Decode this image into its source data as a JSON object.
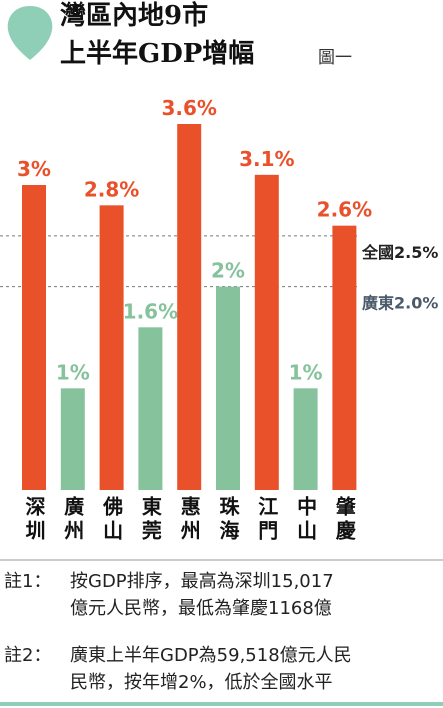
{
  "chart_data": {
    "type": "bar",
    "title": "灣區內地9市",
    "subtitle": "上半年GDP增幅",
    "figure_label": "圖一",
    "categories": [
      "深圳",
      "廣州",
      "佛山",
      "東莞",
      "惠州",
      "珠海",
      "江門",
      "中山",
      "肇慶"
    ],
    "values": [
      3,
      1,
      2.8,
      1.6,
      3.6,
      2,
      3.1,
      1,
      2.6
    ],
    "value_labels": [
      "3%",
      "1%",
      "2.8%",
      "1.6%",
      "3.6%",
      "2%",
      "3.1%",
      "1%",
      "2.6%"
    ],
    "colors": [
      "#e9512b",
      "#86c29b",
      "#e9512b",
      "#86c29b",
      "#e9512b",
      "#86c29b",
      "#e9512b",
      "#86c29b",
      "#e9512b"
    ],
    "reference_lines": [
      {
        "label": "全國2.5%",
        "value": 2.5,
        "color": "#222222"
      },
      {
        "label": "廣東2.0%",
        "value": 2.0,
        "color": "#4a5a6a"
      }
    ]
  },
  "notes": [
    {
      "label": "註1：",
      "lines": [
        "按GDP排序，最高為深圳15,017",
        "億元人民幣，最低為肇慶1168億"
      ]
    },
    {
      "label": "註2：",
      "lines": [
        "廣東上半年GDP為59,518億元人民",
        "民幣，按年增2%，低於全國水平"
      ]
    }
  ]
}
